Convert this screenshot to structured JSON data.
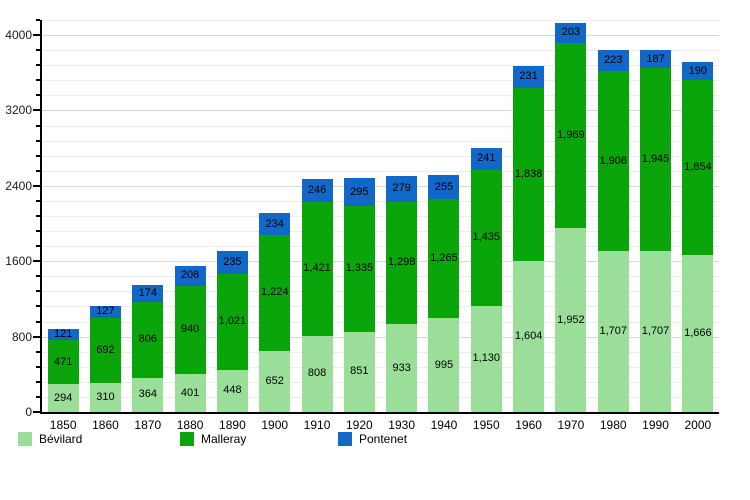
{
  "chart_data": {
    "type": "bar",
    "stacked": true,
    "categories": [
      "1850",
      "1860",
      "1870",
      "1880",
      "1890",
      "1900",
      "1910",
      "1920",
      "1930",
      "1940",
      "1950",
      "1960",
      "1970",
      "1980",
      "1990",
      "2000"
    ],
    "series": [
      {
        "name": "Bévilard",
        "color": "#9ade9a",
        "values": [
          294,
          310,
          364,
          401,
          448,
          652,
          808,
          851,
          933,
          995,
          1130,
          1604,
          1952,
          1707,
          1707,
          1666
        ]
      },
      {
        "name": "Malleray",
        "color": "#0aa50a",
        "values": [
          471,
          692,
          806,
          940,
          1021,
          1224,
          1421,
          1335,
          1298,
          1265,
          1435,
          1838,
          1969,
          1908,
          1945,
          1854
        ]
      },
      {
        "name": "Pontenet",
        "color": "#1168c8",
        "values": [
          121,
          127,
          174,
          208,
          235,
          234,
          246,
          295,
          279,
          255,
          241,
          231,
          203,
          223,
          187,
          190
        ]
      }
    ],
    "title": "",
    "xlabel": "",
    "ylabel": "",
    "ylim": [
      0,
      4160
    ],
    "y_major_step": 800,
    "y_minor_step": 160,
    "y_tick_labels": [
      "0",
      "800",
      "1600",
      "2400",
      "3200",
      "4000"
    ],
    "grid": true,
    "legend_position": "bottom",
    "colors": {
      "axis": "#000000",
      "major_grid": "#d6d6d6",
      "minor_grid": "#ececec",
      "label_text": "#000000"
    }
  },
  "legend": {
    "items": [
      {
        "label": "Bévilard",
        "color": "#9ade9a",
        "x": 18
      },
      {
        "label": "Malleray",
        "color": "#0aa50a",
        "x": 180
      },
      {
        "label": "Pontenet",
        "color": "#1168c8",
        "x": 338
      }
    ]
  }
}
